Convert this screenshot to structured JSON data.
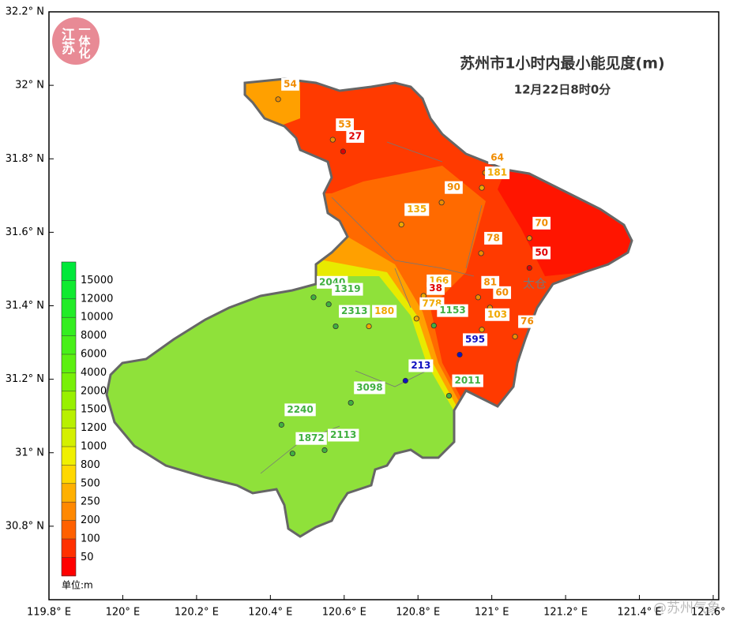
{
  "map": {
    "title": "苏州市1小时内最小能见度(m)",
    "subtitle": "12月22日8时0分",
    "logo": {
      "line1": "江苏",
      "line2": "一体化"
    },
    "watermark": "@苏州气象",
    "place_names": [
      "太仓"
    ],
    "lonlim": [
      119.8,
      121.6
    ],
    "latlim": [
      30.6,
      32.2
    ],
    "lonticks": [
      {
        "value": 119.8,
        "label": "119.8° E"
      },
      {
        "value": 120,
        "label": "120° E"
      },
      {
        "value": 120.2,
        "label": "120.2° E"
      },
      {
        "value": 120.4,
        "label": "120.4° E"
      },
      {
        "value": 120.6,
        "label": "120.6° E"
      },
      {
        "value": 120.8,
        "label": "120.8° E"
      },
      {
        "value": 121,
        "label": "121° E"
      },
      {
        "value": 121.2,
        "label": "121.2° E"
      },
      {
        "value": 121.4,
        "label": "121.4° E"
      },
      {
        "value": 121.6,
        "label": "121.6° E"
      }
    ],
    "latticks": [
      {
        "value": 32.2,
        "label": "32.2° N"
      },
      {
        "value": 32,
        "label": "32° N"
      },
      {
        "value": 31.8,
        "label": "31.8° N"
      },
      {
        "value": 31.6,
        "label": "31.6° N"
      },
      {
        "value": 31.4,
        "label": "31.4° N"
      },
      {
        "value": 31.2,
        "label": "31.2° N"
      },
      {
        "value": 31,
        "label": "31° N"
      },
      {
        "value": 30.8,
        "label": "30.8° N"
      }
    ],
    "stations": [
      {
        "lon": 120.421,
        "lat": 31.962,
        "value": 54,
        "color": "#f08c00"
      },
      {
        "lon": 120.569,
        "lat": 31.852,
        "value": 53,
        "color": "#f08c00"
      },
      {
        "lon": 120.597,
        "lat": 31.82,
        "value": 27,
        "color": "#e00000"
      },
      {
        "lon": 120.982,
        "lat": 31.762,
        "value": 64,
        "color": "#f08c00"
      },
      {
        "lon": 120.973,
        "lat": 31.721,
        "value": 181,
        "color": "#f0a800"
      },
      {
        "lon": 120.864,
        "lat": 31.681,
        "value": 90,
        "color": "#f08c00"
      },
      {
        "lon": 120.755,
        "lat": 31.621,
        "value": 135,
        "color": "#f0a800"
      },
      {
        "lon": 121.102,
        "lat": 31.584,
        "value": 70,
        "color": "#f08c00"
      },
      {
        "lon": 120.971,
        "lat": 31.543,
        "value": 78,
        "color": "#f08c00"
      },
      {
        "lon": 121.102,
        "lat": 31.503,
        "value": 50,
        "color": "#e00000"
      },
      {
        "lon": 120.517,
        "lat": 31.423,
        "value": 2040,
        "color": "#40b040"
      },
      {
        "lon": 120.558,
        "lat": 31.404,
        "value": 1319,
        "color": "#40b040"
      },
      {
        "lon": 120.815,
        "lat": 31.427,
        "value": 166,
        "color": "#f0a800"
      },
      {
        "lon": 120.815,
        "lat": 31.406,
        "value": 38,
        "color": "#e00000"
      },
      {
        "lon": 120.963,
        "lat": 31.423,
        "value": 81,
        "color": "#f08c00"
      },
      {
        "lon": 120.995,
        "lat": 31.395,
        "value": 60,
        "color": "#f08c00"
      },
      {
        "lon": 120.796,
        "lat": 31.365,
        "value": 778,
        "color": "#f0a800"
      },
      {
        "lon": 120.577,
        "lat": 31.344,
        "value": 2313,
        "color": "#40b040"
      },
      {
        "lon": 120.667,
        "lat": 31.344,
        "value": 180,
        "color": "#f0a800"
      },
      {
        "lon": 120.843,
        "lat": 31.346,
        "value": 1153,
        "color": "#40b040"
      },
      {
        "lon": 120.973,
        "lat": 31.335,
        "value": 103,
        "color": "#f0a800"
      },
      {
        "lon": 121.063,
        "lat": 31.316,
        "value": 76,
        "color": "#f08c00"
      },
      {
        "lon": 120.913,
        "lat": 31.267,
        "value": 595,
        "color": "#1010c0"
      },
      {
        "lon": 120.766,
        "lat": 31.196,
        "value": 213,
        "color": "#1010c0"
      },
      {
        "lon": 120.884,
        "lat": 31.155,
        "value": 2011,
        "color": "#40b040"
      },
      {
        "lon": 120.618,
        "lat": 31.136,
        "value": 3098,
        "color": "#40b040"
      },
      {
        "lon": 120.43,
        "lat": 31.076,
        "value": 2240,
        "color": "#40b040"
      },
      {
        "lon": 120.547,
        "lat": 31.007,
        "value": 2113,
        "color": "#40b040"
      },
      {
        "lon": 120.46,
        "lat": 30.998,
        "value": 1872,
        "color": "#40b040"
      }
    ],
    "legend": {
      "unit": "单位:m",
      "colors": [
        "#00e83a",
        "#10ea30",
        "#22ec28",
        "#34ee20",
        "#48f018",
        "#5cf010",
        "#78f008",
        "#98f000",
        "#b8f000",
        "#d4f000",
        "#f0f000",
        "#ffd800",
        "#ffb000",
        "#ff8800",
        "#ff6000",
        "#ff3000",
        "#ff0000"
      ],
      "labels": [
        15000,
        12000,
        10000,
        8000,
        6000,
        4000,
        2000,
        1500,
        1200,
        1000,
        800,
        500,
        250,
        200,
        100,
        50
      ]
    }
  }
}
